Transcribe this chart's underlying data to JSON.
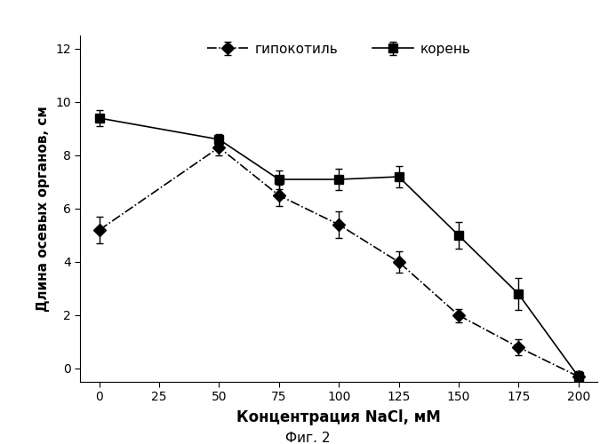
{
  "x": [
    0,
    50,
    75,
    100,
    125,
    150,
    175,
    200
  ],
  "hypocotyl_y": [
    5.2,
    8.3,
    6.5,
    5.4,
    4.0,
    2.0,
    0.8,
    -0.3
  ],
  "hypocotyl_err": [
    0.5,
    0.3,
    0.4,
    0.5,
    0.4,
    0.25,
    0.3,
    0.2
  ],
  "root_y": [
    9.4,
    8.6,
    7.1,
    7.1,
    7.2,
    5.0,
    2.8,
    -0.3
  ],
  "root_err": [
    0.3,
    0.2,
    0.35,
    0.4,
    0.4,
    0.5,
    0.6,
    0.2
  ],
  "xlabel": "Концентрация NaCl, мМ",
  "ylabel": "Длина осевых органов, см",
  "legend_hypocotyl": "гипокотиль",
  "legend_root": "корень",
  "caption": "Фиг. 2",
  "xlim": [
    -8,
    208
  ],
  "ylim": [
    -0.5,
    12.5
  ],
  "xticks": [
    0,
    25,
    50,
    75,
    100,
    125,
    150,
    175,
    200
  ],
  "yticks": [
    0,
    2,
    4,
    6,
    8,
    10,
    12
  ],
  "background_color": "#ffffff",
  "line_color": "#000000"
}
